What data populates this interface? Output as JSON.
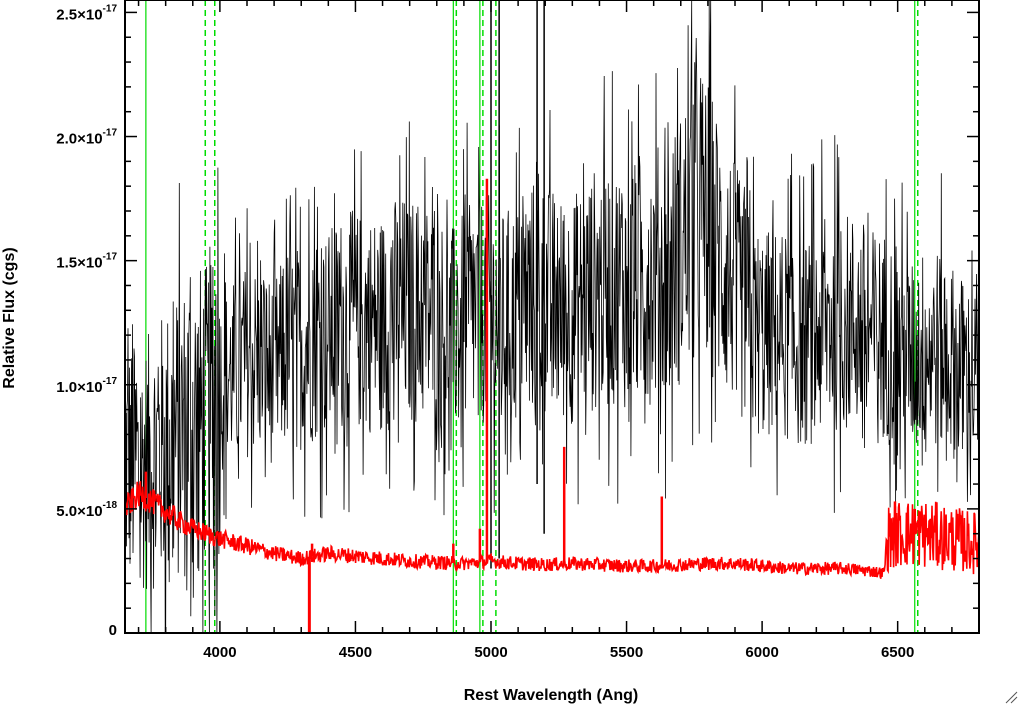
{
  "chart_data": {
    "type": "line",
    "title": "",
    "xlabel": "Rest Wavelength (Ang)",
    "ylabel": "Relative Flux (cgs)",
    "xlim": [
      3650,
      6800
    ],
    "ylim": [
      0,
      2.55e-17
    ],
    "x_ticks": [
      {
        "value": 4000,
        "label": "4000"
      },
      {
        "value": 4500,
        "label": "4500"
      },
      {
        "value": 5000,
        "label": "5000"
      },
      {
        "value": 5500,
        "label": "5500"
      },
      {
        "value": 6000,
        "label": "6000"
      },
      {
        "value": 6500,
        "label": "6500"
      }
    ],
    "y_ticks": [
      {
        "value": 0,
        "mantissa": "0",
        "exponent": ""
      },
      {
        "value": 5e-18,
        "mantissa": "5.0×10",
        "exponent": "-18"
      },
      {
        "value": 1e-17,
        "mantissa": "1.0×10",
        "exponent": "-17"
      },
      {
        "value": 1.5e-17,
        "mantissa": "1.5×10",
        "exponent": "-17"
      },
      {
        "value": 2e-17,
        "mantissa": "2.0×10",
        "exponent": "-17"
      },
      {
        "value": 2.5e-17,
        "mantissa": "2.5×10",
        "exponent": "-17"
      }
    ],
    "grid": false,
    "series": [
      {
        "color": "#000000",
        "style": "noisy-spectrum",
        "x": [
          3650,
          3700,
          3750,
          3800,
          3850,
          3900,
          3950,
          4000,
          4050,
          4100,
          4150,
          4200,
          4250,
          4300,
          4350,
          4400,
          4450,
          4500,
          4550,
          4600,
          4650,
          4700,
          4750,
          4800,
          4850,
          4900,
          4950,
          5000,
          5050,
          5100,
          5150,
          5200,
          5250,
          5300,
          5350,
          5400,
          5450,
          5500,
          5550,
          5600,
          5650,
          5700,
          5750,
          5800,
          5850,
          5900,
          5950,
          6000,
          6050,
          6100,
          6150,
          6200,
          6250,
          6300,
          6350,
          6400,
          6450,
          6500,
          6550,
          6600,
          6650,
          6700,
          6750,
          6800
        ],
        "y": [
          7e-18,
          6.5e-18,
          7e-18,
          7.5e-18,
          8e-18,
          8.5e-18,
          8.5e-18,
          1e-17,
          1.05e-17,
          1.1e-17,
          1.1e-17,
          1.05e-17,
          1.15e-17,
          1.15e-17,
          1.2e-17,
          1.2e-17,
          1.25e-17,
          1.25e-17,
          1.25e-17,
          1.25e-17,
          1.3e-17,
          1.3e-17,
          1.3e-17,
          1.25e-17,
          1.2e-17,
          1.25e-17,
          1.3e-17,
          1.3e-17,
          1.25e-17,
          1.3e-17,
          1.35e-17,
          1.35e-17,
          1.3e-17,
          1.3e-17,
          1.35e-17,
          1.4e-17,
          1.4e-17,
          1.4e-17,
          1.4e-17,
          1.45e-17,
          1.45e-17,
          1.55e-17,
          1.7e-17,
          1.65e-17,
          1.5e-17,
          1.4e-17,
          1.25e-17,
          1.2e-17,
          1.2e-17,
          1.2e-17,
          1.15e-17,
          1.2e-17,
          1.25e-17,
          1.25e-17,
          1.25e-17,
          1.2e-17,
          1.2e-17,
          1.15e-17,
          1.1e-17,
          1.15e-17,
          1.15e-17,
          1.1e-17,
          1.05e-17,
          1e-17
        ]
      },
      {
        "color": "#ff0000",
        "style": "model-continuum",
        "x": [
          3650,
          3700,
          3750,
          3800,
          3850,
          3900,
          3950,
          4000,
          4100,
          4200,
          4300,
          4400,
          4500,
          4600,
          4700,
          4800,
          4900,
          5000,
          5100,
          5200,
          5300,
          5400,
          5500,
          5600,
          5700,
          5800,
          5900,
          6000,
          6100,
          6200,
          6300,
          6400,
          6450,
          6460,
          6500,
          6600,
          6700,
          6800
        ],
        "y": [
          5e-18,
          5.6e-18,
          5.3e-18,
          4.9e-18,
          4.5e-18,
          4.2e-18,
          4e-18,
          3.8e-18,
          3.5e-18,
          3.2e-18,
          3e-18,
          3.2e-18,
          3.1e-18,
          3e-18,
          2.9e-18,
          2.85e-18,
          2.8e-18,
          2.9e-18,
          2.8e-18,
          2.75e-18,
          2.8e-18,
          2.75e-18,
          2.7e-18,
          2.7e-18,
          2.75e-18,
          2.8e-18,
          2.8e-18,
          2.7e-18,
          2.6e-18,
          2.6e-18,
          2.6e-18,
          2.5e-18,
          2.4e-18,
          3.8e-18,
          4e-18,
          4e-18,
          3.8e-18,
          3.6e-18
        ]
      }
    ],
    "red_emission_lines": [
      {
        "x": 3727,
        "peak": 6.5e-18
      },
      {
        "x": 4101,
        "peak": 3.8e-18
      },
      {
        "x": 4340,
        "peak": 3.6e-18
      },
      {
        "x": 4861,
        "peak": 3.6e-18
      },
      {
        "x": 4959,
        "peak": 4.2e-18
      },
      {
        "x": 4985,
        "peak": 1.83e-17
      },
      {
        "x": 5270,
        "peak": 7.5e-18
      },
      {
        "x": 5630,
        "peak": 5.5e-18
      },
      {
        "x": 6490,
        "peak": 5.3e-18
      },
      {
        "x": 6563,
        "peak": 5e-18
      },
      {
        "x": 6720,
        "peak": 4.8e-18
      }
    ],
    "red_absorption_spike": {
      "x": 4330,
      "y_min": 0,
      "y_max": 3e-18
    },
    "black_spikes": [
      {
        "x": 5000,
        "y_min": 2.6e-18,
        "y_max": 2.55e-17
      },
      {
        "x": 5030,
        "y_min": 3e-18,
        "y_max": 2.55e-17
      },
      {
        "x": 5196,
        "y_min": 4e-18,
        "y_max": 2.55e-17
      },
      {
        "x": 5170,
        "y_min": 6e-18,
        "y_max": 2.55e-17
      }
    ],
    "reference_lines": {
      "green_solid": [
        3727,
        4861,
        4959,
        6563
      ],
      "green_dashed": [
        3935,
        3970,
        4861,
        4959,
        5007,
        6563
      ]
    },
    "colors": {
      "spectrum": "#000000",
      "model": "#ff0000",
      "reference": "#00dd00",
      "background": "#ffffff"
    }
  }
}
